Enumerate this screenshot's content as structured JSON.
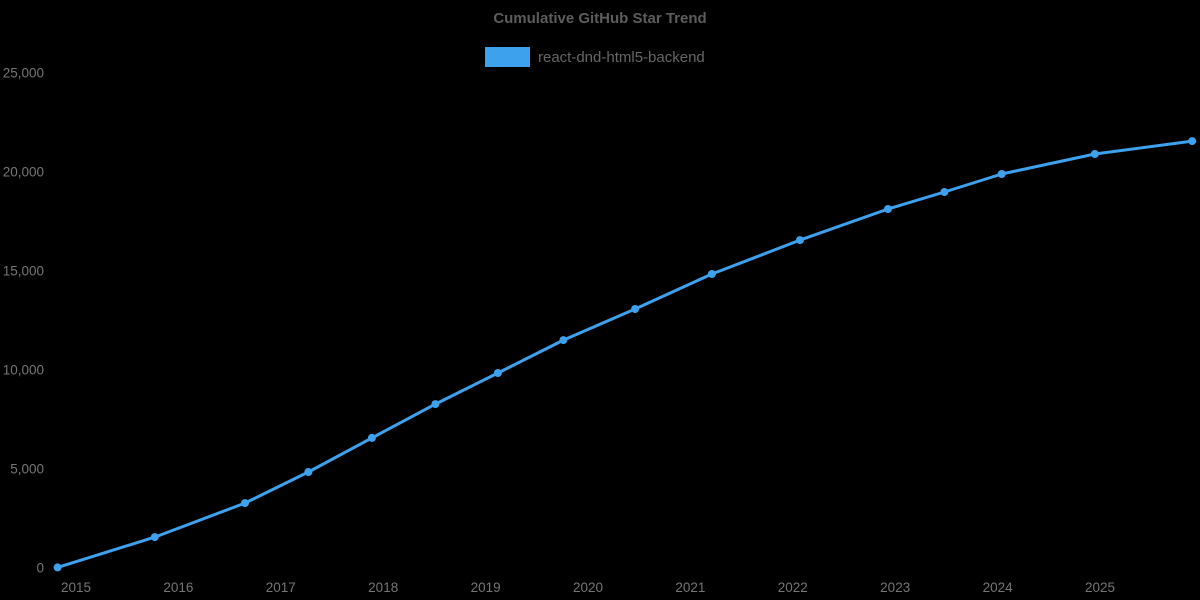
{
  "title": "Cumulative GitHub Star Trend",
  "legend": {
    "series_label": "react-dnd-html5-backend"
  },
  "colors": {
    "background": "#000000",
    "series": "#3da1ed",
    "title_text": "#5c5c5c",
    "legend_text": "#666666",
    "tick_text": "#757575"
  },
  "chart_data": {
    "type": "line",
    "title": "Cumulative GitHub Star Trend",
    "xlabel": "",
    "ylabel": "",
    "xlim": [
      2014.26,
      2025.98
    ],
    "ylim": [
      0,
      25000
    ],
    "grid": false,
    "markers": true,
    "legend_position": "top-center",
    "x_ticks": [
      2015,
      2016,
      2017,
      2018,
      2019,
      2020,
      2021,
      2022,
      2023,
      2024,
      2025
    ],
    "y_ticks": [
      0,
      5000,
      10000,
      15000,
      20000,
      25000
    ],
    "series": [
      {
        "name": "react-dnd-html5-backend",
        "color": "#3da1ed",
        "points": [
          {
            "date": "2014-10",
            "x": 2014.82,
            "value": 30
          },
          {
            "date": "2015-10",
            "x": 2015.77,
            "value": 1560
          },
          {
            "date": "2016-08",
            "x": 2016.65,
            "value": 3280
          },
          {
            "date": "2017-04",
            "x": 2017.27,
            "value": 4850
          },
          {
            "date": "2017-11",
            "x": 2017.89,
            "value": 6570
          },
          {
            "date": "2018-07",
            "x": 2018.51,
            "value": 8280
          },
          {
            "date": "2019-02",
            "x": 2019.12,
            "value": 9850
          },
          {
            "date": "2019-10",
            "x": 2019.76,
            "value": 11510
          },
          {
            "date": "2020-06",
            "x": 2020.46,
            "value": 13080
          },
          {
            "date": "2021-03",
            "x": 2021.21,
            "value": 14850
          },
          {
            "date": "2022-01",
            "x": 2022.07,
            "value": 16560
          },
          {
            "date": "2022-12",
            "x": 2022.93,
            "value": 18130
          },
          {
            "date": "2023-06",
            "x": 2023.48,
            "value": 18990
          },
          {
            "date": "2024-01",
            "x": 2024.04,
            "value": 19900
          },
          {
            "date": "2024-12",
            "x": 2024.95,
            "value": 20910
          },
          {
            "date": "2025-11",
            "x": 2025.9,
            "value": 21560
          }
        ]
      }
    ]
  }
}
